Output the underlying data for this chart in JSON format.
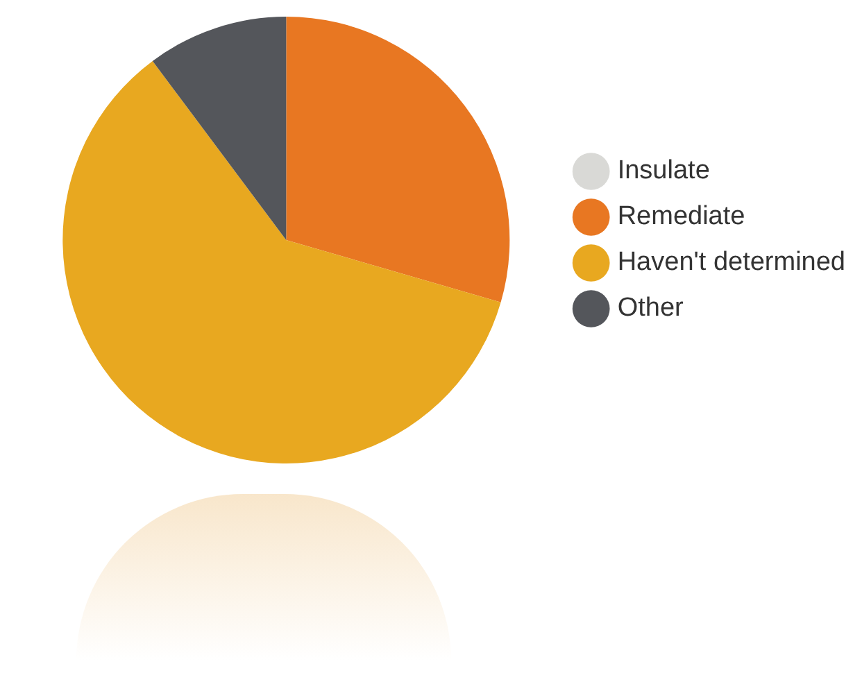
{
  "chart_data": {
    "type": "pie",
    "categories": [
      "Insulate",
      "Remediate",
      "Haven't determined",
      "Other"
    ],
    "values": [
      0,
      29.5,
      60.3,
      10.2
    ],
    "colors": [
      "#d9d9d6",
      "#e87722",
      "#e8a820",
      "#54565b"
    ],
    "legend": "right"
  }
}
